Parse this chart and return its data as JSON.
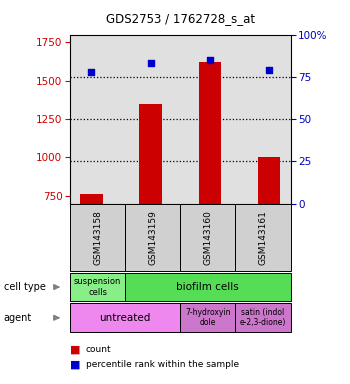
{
  "title": "GDS2753 / 1762728_s_at",
  "samples": [
    "GSM143158",
    "GSM143159",
    "GSM143160",
    "GSM143161"
  ],
  "counts": [
    760,
    1350,
    1620,
    1000
  ],
  "percentiles": [
    78,
    83,
    85,
    79
  ],
  "ylim_left": [
    700,
    1800
  ],
  "ylim_right": [
    0,
    100
  ],
  "yticks_left": [
    750,
    1000,
    1250,
    1500,
    1750
  ],
  "yticks_right": [
    0,
    25,
    50,
    75,
    100
  ],
  "bar_color": "#cc0000",
  "dot_color": "#0000cc",
  "bar_bottom": 700,
  "cell_type_colors": {
    "suspension cells": "#88ee88",
    "biofilm cells": "#55dd55"
  },
  "agent_colors": {
    "untreated": "#ee88ee",
    "7-hydroxyindole": "#cc77cc",
    "satin": "#cc77cc"
  },
  "legend_count_color": "#cc0000",
  "legend_pct_color": "#0000cc",
  "left_label_color": "#cc0000",
  "right_label_color": "#0000bb",
  "background_color": "#ffffff",
  "plot_bg_color": "#e0e0e0",
  "sample_box_color": "#d0d0d0"
}
